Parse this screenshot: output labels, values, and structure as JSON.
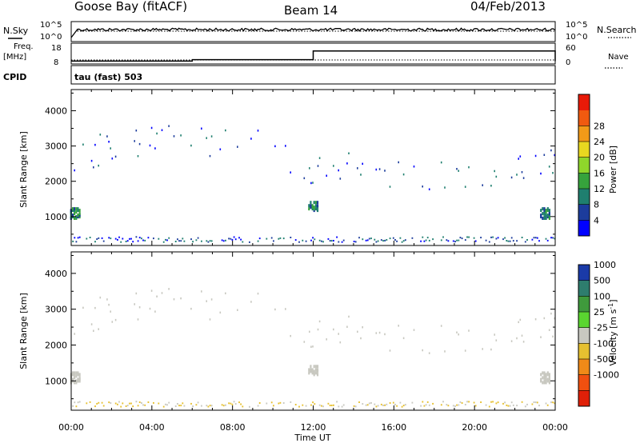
{
  "header": {
    "station": "Goose Bay (fitACF)",
    "beam": "Beam 14",
    "date": "04/Feb/2013"
  },
  "top_panels": {
    "nsky_label": "N.Sky",
    "nsearch_label": "N.Search",
    "log_ticks": [
      "10^5",
      "10^0"
    ],
    "freq_label": "Freq.",
    "freq_unit": "[MHz]",
    "freq_ticks": [
      "18",
      "8"
    ],
    "nave_label": "Nave",
    "nave_ticks": [
      "60",
      "0"
    ],
    "cpid_label": "CPID",
    "cpid_value": "tau (fast) 503"
  },
  "chart_data": [
    {
      "type": "line",
      "panel": "noise",
      "series": [
        {
          "name": "N.Sky",
          "style": "solid",
          "x_hours": [
            0,
            0.3,
            24
          ],
          "values": [
            1,
            3.6,
            3.6
          ]
        },
        {
          "name": "N.Search",
          "style": "dotted",
          "x_hours": [
            0,
            24
          ],
          "values": [
            3.6,
            3.6
          ]
        }
      ],
      "ylim": [
        "10^0",
        "10^5"
      ]
    },
    {
      "type": "line",
      "panel": "frequency-nave",
      "series": [
        {
          "name": "Freq.",
          "style": "solid",
          "x_hours": [
            0,
            6,
            12,
            22,
            24
          ],
          "values": [
            10,
            11,
            17,
            17,
            10
          ]
        },
        {
          "name": "Nave",
          "style": "dotted",
          "x_hours": [
            0,
            24
          ],
          "values": [
            10,
            10
          ]
        }
      ]
    },
    {
      "type": "heatmap",
      "panel": "power",
      "ylabel": "Slant Range [km]",
      "ylim": [
        180,
        4600
      ],
      "yticks": [
        1000,
        2000,
        3000,
        4000
      ],
      "colorbar": {
        "label": "Power [dB]",
        "ticks": [
          4,
          8,
          12,
          16,
          20,
          24,
          28
        ],
        "colors": [
          "#0000ff",
          "#1c3c9c",
          "#1f7f6f",
          "#36a33c",
          "#8fd62b",
          "#e8d820",
          "#f29a18",
          "#f05a10",
          "#e81a08"
        ]
      },
      "echo_region": {
        "x_hours": [
          0,
          2,
          4,
          6,
          8,
          9.5,
          11,
          12,
          14,
          16,
          18,
          20,
          22,
          24
        ],
        "center_km": [
          1800,
          2300,
          2400,
          2350,
          2450,
          2300,
          1800,
          1400,
          1700,
          1450,
          1400,
          1500,
          1500,
          1650
        ],
        "width_km": [
          500,
          400,
          500,
          500,
          400,
          400,
          600,
          500,
          500,
          500,
          500,
          600,
          500,
          600
        ]
      }
    },
    {
      "type": "heatmap",
      "panel": "velocity",
      "ylabel": "Slant Range [km]",
      "xlabel": "Time UT",
      "xticks": [
        "00:00",
        "04:00",
        "08:00",
        "12:00",
        "16:00",
        "20:00",
        "00:00"
      ],
      "ylim": [
        180,
        4600
      ],
      "yticks": [
        1000,
        2000,
        3000,
        4000
      ],
      "colorbar": {
        "label": "Velocity [m s^-1]",
        "ticks": [
          "1000",
          "500",
          "100",
          "25",
          "-25",
          "-100",
          "-500",
          "-1000"
        ],
        "colors": [
          "#1a3aa8",
          "#2e7d6e",
          "#3f9a3c",
          "#5ad630",
          "#c8c8c0",
          "#e6c030",
          "#f08a18",
          "#f05010",
          "#e02008"
        ]
      }
    }
  ],
  "colors": {
    "background": "#ffffff",
    "frame": "#000000",
    "ground_scatter": "#c8c8c0"
  }
}
